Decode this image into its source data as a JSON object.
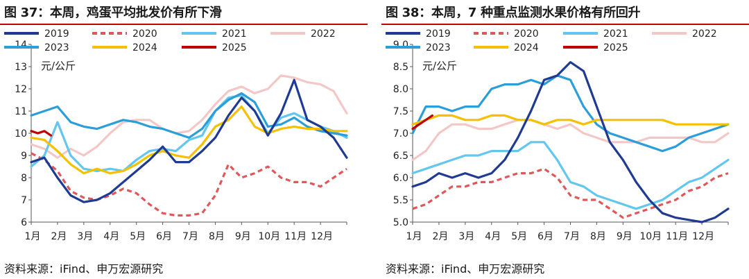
{
  "charts": [
    {
      "title": "图 37：本周，鸡蛋平均批发价有所下滑",
      "source": "资料来源：iFind、申万宏源研究"
    },
    {
      "title": "图 38：本周，7 种重点监测水果价格有所回升",
      "source": "资料来源：iFind、申万宏源研究"
    }
  ],
  "chart_data": [
    {
      "type": "line",
      "title": "图 37：本周，鸡蛋平均批发价有所下滑",
      "ylabel": "元/公斤",
      "ylim": [
        6,
        14
      ],
      "yticks": [
        "6",
        "7",
        "8",
        "9",
        "10",
        "11",
        "12",
        "13",
        "14"
      ],
      "x_ticklabels": [
        "1月",
        "2月",
        "3月",
        "4月",
        "5月",
        "6月",
        "7月",
        "8月",
        "9月",
        "10月",
        "11月",
        "12月"
      ],
      "legend_position": "top",
      "series": [
        {
          "name": "2019",
          "color": "#1f3a93",
          "dash": "",
          "x": [
            1,
            1.5,
            2,
            2.5,
            3,
            3.5,
            4,
            4.5,
            5,
            5.5,
            6,
            6.5,
            7,
            7.5,
            8,
            8.5,
            9,
            9.5,
            10,
            10.5,
            11,
            11.5,
            12,
            12.5,
            13
          ],
          "values": [
            8.7,
            8.9,
            8.0,
            7.2,
            6.9,
            7.0,
            7.3,
            7.8,
            8.3,
            8.8,
            9.4,
            8.7,
            8.7,
            9.2,
            9.8,
            10.8,
            11.6,
            11.0,
            9.9,
            10.9,
            12.4,
            10.6,
            10.3,
            9.8,
            8.9
          ]
        },
        {
          "name": "2020",
          "color": "#e15759",
          "dash": "7,5",
          "x": [
            1,
            1.5,
            2,
            2.5,
            3,
            3.5,
            4,
            4.5,
            5,
            5.5,
            6,
            6.5,
            7,
            7.5,
            8,
            8.5,
            9,
            9.5,
            10,
            10.5,
            11,
            11.5,
            12,
            12.5,
            13
          ],
          "values": [
            9.1,
            8.8,
            8.3,
            7.4,
            7.1,
            7.0,
            7.2,
            7.5,
            7.3,
            6.8,
            6.4,
            6.3,
            6.3,
            6.4,
            7.2,
            8.6,
            8.0,
            8.2,
            8.5,
            8.0,
            7.8,
            7.8,
            7.6,
            8.0,
            8.4
          ]
        },
        {
          "name": "2021",
          "color": "#62c6ee",
          "dash": "",
          "x": [
            1,
            1.5,
            2,
            2.5,
            3,
            3.5,
            4,
            4.5,
            5,
            5.5,
            6,
            6.5,
            7,
            7.5,
            8,
            8.5,
            9,
            9.5,
            10,
            10.5,
            11,
            11.5,
            12,
            12.5,
            13
          ],
          "values": [
            8.5,
            9.0,
            10.5,
            9.0,
            8.4,
            8.3,
            8.4,
            8.3,
            8.8,
            9.2,
            9.3,
            9.2,
            9.7,
            9.9,
            11.0,
            11.6,
            11.7,
            11.0,
            10.0,
            10.7,
            10.9,
            10.6,
            10.3,
            10.1,
            9.8
          ]
        },
        {
          "name": "2022",
          "color": "#f4c7c7",
          "dash": "",
          "x": [
            1,
            1.5,
            2,
            2.5,
            3,
            3.5,
            4,
            4.5,
            5,
            5.5,
            6,
            6.5,
            7,
            7.5,
            8,
            8.5,
            9,
            9.5,
            10,
            10.5,
            11,
            11.5,
            12,
            12.5,
            13
          ],
          "values": [
            9.5,
            9.3,
            8.9,
            9.3,
            9.0,
            9.4,
            10.0,
            10.5,
            10.6,
            10.6,
            10.2,
            10.0,
            10.1,
            10.6,
            11.3,
            11.9,
            12.1,
            11.8,
            12.0,
            12.6,
            12.5,
            12.3,
            12.2,
            11.9,
            10.9
          ]
        },
        {
          "name": "2023",
          "color": "#2b9ed9",
          "dash": "",
          "x": [
            1,
            1.5,
            2,
            2.5,
            3,
            3.5,
            4,
            4.5,
            5,
            5.5,
            6,
            6.5,
            7,
            7.5,
            8,
            8.5,
            9,
            9.5,
            10,
            10.5,
            11,
            11.5,
            12,
            12.5,
            13
          ],
          "values": [
            10.8,
            11.0,
            11.2,
            10.5,
            10.3,
            10.2,
            10.4,
            10.6,
            10.5,
            10.3,
            10.2,
            10.0,
            9.8,
            10.2,
            11.0,
            11.5,
            11.8,
            11.4,
            10.3,
            10.4,
            10.7,
            10.3,
            10.1,
            10.0,
            9.9
          ]
        },
        {
          "name": "2024",
          "color": "#f5c000",
          "dash": "",
          "x": [
            1,
            1.5,
            2,
            2.5,
            3,
            3.5,
            4,
            4.5,
            5,
            5.5,
            6,
            6.5,
            7,
            7.5,
            8,
            8.5,
            9,
            9.5,
            10,
            10.5,
            11,
            11.5,
            12,
            12.5,
            13
          ],
          "values": [
            9.8,
            9.7,
            9.2,
            8.6,
            8.2,
            8.4,
            8.2,
            8.3,
            8.6,
            9.0,
            9.2,
            9.0,
            8.9,
            9.5,
            10.3,
            10.6,
            11.2,
            10.3,
            10.0,
            10.2,
            10.3,
            10.2,
            10.2,
            10.1,
            10.1
          ]
        },
        {
          "name": "2025",
          "color": "#c00000",
          "dash": "",
          "x": [
            1,
            1.25,
            1.5,
            1.75
          ],
          "values": [
            10.1,
            10.0,
            10.1,
            9.9
          ]
        }
      ]
    },
    {
      "type": "line",
      "title": "图 38：本周，7 种重点监测水果价格有所回升",
      "ylabel": "元/公斤",
      "ylim": [
        5.0,
        9.0
      ],
      "yticks": [
        "5.0",
        "5.5",
        "6.0",
        "6.5",
        "7.0",
        "7.5",
        "8.0",
        "8.5",
        "9.0"
      ],
      "x_ticklabels": [
        "1月",
        "2月",
        "3月",
        "4月",
        "5月",
        "6月",
        "7月",
        "8月",
        "9月",
        "10月",
        "11月",
        "12月"
      ],
      "legend_position": "top",
      "series": [
        {
          "name": "2019",
          "color": "#1f3a93",
          "dash": "",
          "x": [
            1,
            1.5,
            2,
            2.5,
            3,
            3.5,
            4,
            4.5,
            5,
            5.5,
            6,
            6.5,
            7,
            7.5,
            8,
            8.5,
            9,
            9.5,
            10,
            10.5,
            11,
            11.5,
            12,
            12.5,
            13
          ],
          "values": [
            5.8,
            5.9,
            6.1,
            6.0,
            6.1,
            6.0,
            6.1,
            6.4,
            6.9,
            7.5,
            8.2,
            8.3,
            8.6,
            8.4,
            7.6,
            6.8,
            6.4,
            5.9,
            5.5,
            5.2,
            5.1,
            5.05,
            5.0,
            5.1,
            5.3
          ]
        },
        {
          "name": "2020",
          "color": "#e15759",
          "dash": "7,5",
          "x": [
            1,
            1.5,
            2,
            2.5,
            3,
            3.5,
            4,
            4.5,
            5,
            5.5,
            6,
            6.5,
            7,
            7.5,
            8,
            8.5,
            9,
            9.5,
            10,
            10.5,
            11,
            11.5,
            12,
            12.5,
            13
          ],
          "values": [
            5.3,
            5.4,
            5.6,
            5.8,
            5.8,
            5.9,
            5.9,
            6.0,
            6.1,
            6.1,
            6.2,
            6.0,
            5.6,
            5.5,
            5.5,
            5.3,
            5.1,
            5.2,
            5.3,
            5.4,
            5.5,
            5.7,
            5.8,
            6.0,
            6.1
          ]
        },
        {
          "name": "2021",
          "color": "#62c6ee",
          "dash": "",
          "x": [
            1,
            1.5,
            2,
            2.5,
            3,
            3.5,
            4,
            4.5,
            5,
            5.5,
            6,
            6.5,
            7,
            7.5,
            8,
            8.5,
            9,
            9.5,
            10,
            10.5,
            11,
            11.5,
            12,
            12.5,
            13
          ],
          "values": [
            6.1,
            6.2,
            6.3,
            6.4,
            6.5,
            6.5,
            6.6,
            6.6,
            6.6,
            6.8,
            6.8,
            6.4,
            5.9,
            5.8,
            5.6,
            5.5,
            5.4,
            5.3,
            5.4,
            5.5,
            5.7,
            5.9,
            6.0,
            6.2,
            6.4
          ]
        },
        {
          "name": "2022",
          "color": "#f4c7c7",
          "dash": "",
          "x": [
            1,
            1.5,
            2,
            2.5,
            3,
            3.5,
            4,
            4.5,
            5,
            5.5,
            6,
            6.5,
            7,
            7.5,
            8,
            8.5,
            9,
            9.5,
            10,
            10.5,
            11,
            11.5,
            12,
            12.5,
            13
          ],
          "values": [
            6.4,
            6.6,
            7.0,
            7.2,
            7.2,
            7.1,
            7.1,
            7.2,
            7.3,
            7.3,
            7.2,
            7.1,
            7.2,
            7.0,
            6.9,
            6.8,
            6.8,
            6.8,
            6.9,
            6.9,
            6.9,
            6.9,
            6.8,
            6.8,
            7.0
          ]
        },
        {
          "name": "2023",
          "color": "#2b9ed9",
          "dash": "",
          "x": [
            1,
            1.5,
            2,
            2.5,
            3,
            3.5,
            4,
            4.5,
            5,
            5.5,
            6,
            6.5,
            7,
            7.5,
            8,
            8.5,
            9,
            9.5,
            10,
            10.5,
            11,
            11.5,
            12,
            12.5,
            13
          ],
          "values": [
            7.0,
            7.6,
            7.6,
            7.5,
            7.6,
            7.6,
            8.0,
            8.1,
            8.1,
            8.2,
            8.1,
            8.3,
            8.2,
            7.6,
            7.2,
            7.0,
            6.9,
            6.8,
            6.7,
            6.6,
            6.7,
            6.9,
            7.0,
            7.1,
            7.2
          ]
        },
        {
          "name": "2024",
          "color": "#f5c000",
          "dash": "",
          "x": [
            1,
            1.5,
            2,
            2.5,
            3,
            3.5,
            4,
            4.5,
            5,
            5.5,
            6,
            6.5,
            7,
            7.5,
            8,
            8.5,
            9,
            9.5,
            10,
            10.5,
            11,
            11.5,
            12,
            12.5,
            13
          ],
          "values": [
            7.2,
            7.3,
            7.4,
            7.4,
            7.3,
            7.3,
            7.4,
            7.4,
            7.3,
            7.3,
            7.2,
            7.3,
            7.3,
            7.2,
            7.3,
            7.3,
            7.3,
            7.3,
            7.3,
            7.3,
            7.2,
            7.2,
            7.2,
            7.2,
            7.2
          ]
        },
        {
          "name": "2025",
          "color": "#c00000",
          "dash": "",
          "x": [
            1,
            1.25,
            1.5,
            1.75
          ],
          "values": [
            7.1,
            7.2,
            7.3,
            7.4
          ]
        }
      ]
    }
  ]
}
